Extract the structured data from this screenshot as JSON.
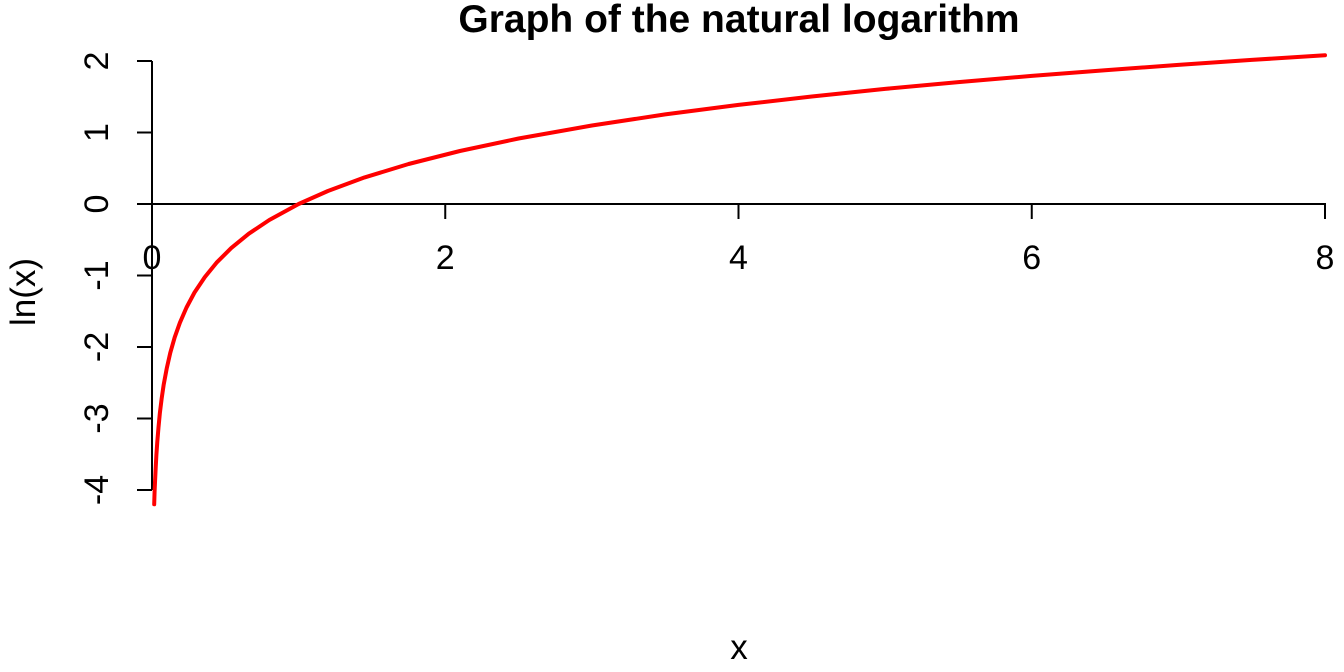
{
  "chart_data": {
    "type": "line",
    "title": "Graph of the natural logarithm",
    "xlabel": "x",
    "ylabel": "ln(x)",
    "xlim": [
      0,
      8
    ],
    "ylim": [
      -4.21,
      2.08
    ],
    "grid": false,
    "legend_position": "none",
    "background_color": "#FFFFFF",
    "axis_color": "#000000",
    "x_ticks": [
      {
        "value": 0,
        "label": "0"
      },
      {
        "value": 2,
        "label": "2"
      },
      {
        "value": 4,
        "label": "4"
      },
      {
        "value": 6,
        "label": "6"
      },
      {
        "value": 8,
        "label": "8"
      }
    ],
    "y_ticks": [
      {
        "value": 2,
        "label": "2"
      },
      {
        "value": 1,
        "label": "1"
      },
      {
        "value": 0,
        "label": "0"
      },
      {
        "value": -1,
        "label": "-1"
      },
      {
        "value": -2,
        "label": "-2"
      },
      {
        "value": -3,
        "label": "-3"
      },
      {
        "value": -4,
        "label": "-4"
      }
    ],
    "series": [
      {
        "name": "ln(x)",
        "color": "#FF0000",
        "line_width": 4,
        "points": [
          [
            0.015,
            -4.1997
          ],
          [
            0.018,
            -4.0174
          ],
          [
            0.021,
            -3.8632
          ],
          [
            0.025,
            -3.6889
          ],
          [
            0.03,
            -3.5066
          ],
          [
            0.036,
            -3.3242
          ],
          [
            0.044,
            -3.1236
          ],
          [
            0.054,
            -2.9188
          ],
          [
            0.066,
            -2.7181
          ],
          [
            0.08,
            -2.5257
          ],
          [
            0.1,
            -2.3026
          ],
          [
            0.125,
            -2.0794
          ],
          [
            0.155,
            -1.8643
          ],
          [
            0.19,
            -1.6607
          ],
          [
            0.235,
            -1.4482
          ],
          [
            0.29,
            -1.2379
          ],
          [
            0.36,
            -1.0217
          ],
          [
            0.44,
            -0.821
          ],
          [
            0.54,
            -0.6162
          ],
          [
            0.66,
            -0.4155
          ],
          [
            0.8,
            -0.2231
          ],
          [
            1.0,
            0.0
          ],
          [
            1.2,
            0.1823
          ],
          [
            1.45,
            0.3716
          ],
          [
            1.75,
            0.5596
          ],
          [
            2.1,
            0.7419
          ],
          [
            2.5,
            0.9163
          ],
          [
            3.0,
            1.0986
          ],
          [
            3.5,
            1.2528
          ],
          [
            4.0,
            1.3863
          ],
          [
            4.5,
            1.5041
          ],
          [
            5.0,
            1.6094
          ],
          [
            5.5,
            1.7047
          ],
          [
            6.0,
            1.7918
          ],
          [
            6.5,
            1.8718
          ],
          [
            7.0,
            1.9459
          ],
          [
            7.5,
            2.0149
          ],
          [
            8.0,
            2.0794
          ]
        ]
      }
    ]
  }
}
